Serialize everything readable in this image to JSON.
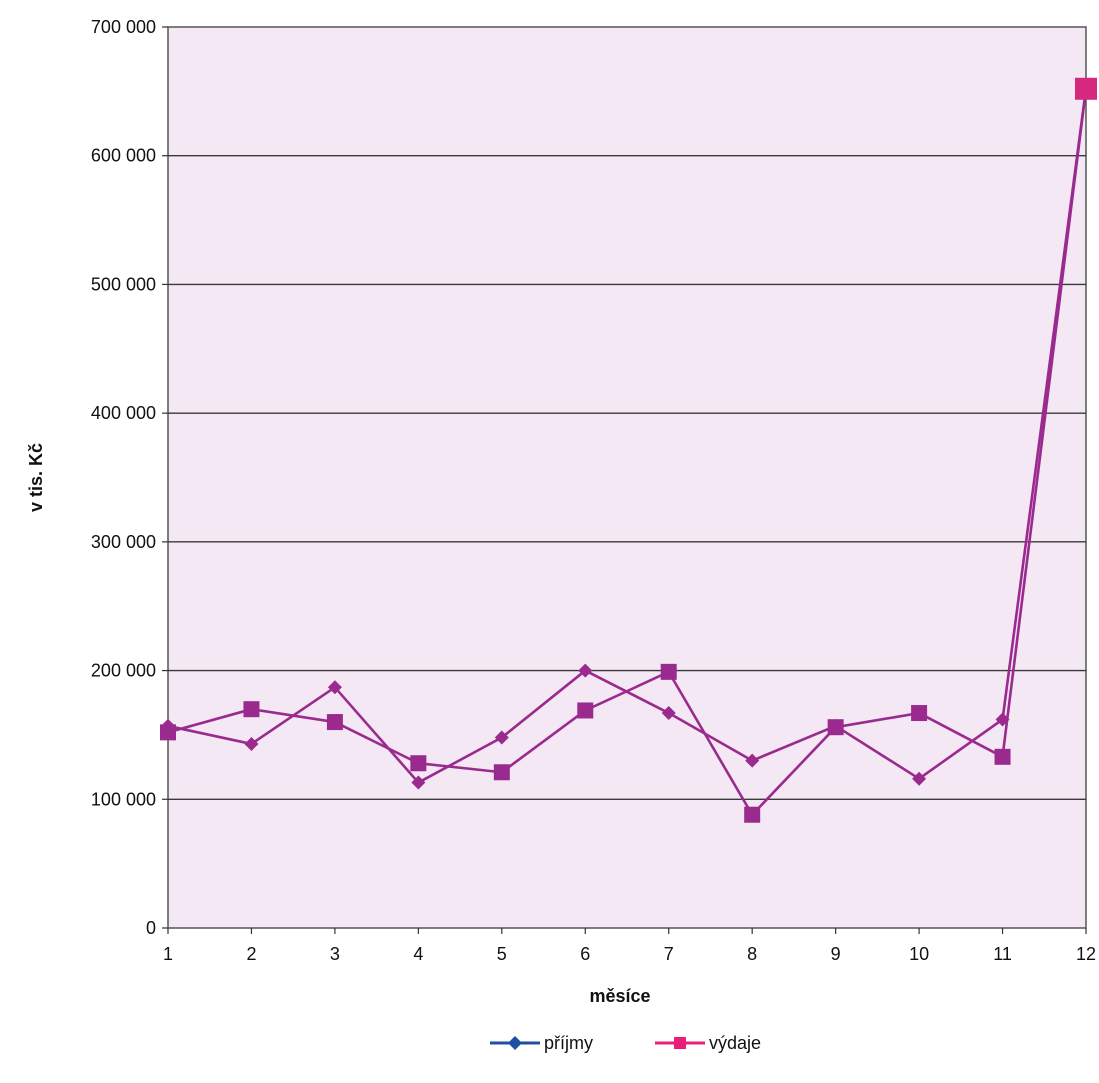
{
  "chart_data": {
    "type": "line",
    "x": [
      1,
      2,
      3,
      4,
      5,
      6,
      7,
      8,
      9,
      10,
      11,
      12
    ],
    "xlabel": "měsíce",
    "ylabel": "v tis. Kč",
    "ylim": [
      0,
      700000
    ],
    "y_ticks": [
      "0",
      "100 000",
      "200 000",
      "300 000",
      "400 000",
      "500 000",
      "600 000",
      "700 000"
    ],
    "x_ticks": [
      "1",
      "2",
      "3",
      "4",
      "5",
      "6",
      "7",
      "8",
      "9",
      "10",
      "11",
      "12"
    ],
    "grid": true,
    "legend_position": "bottom",
    "plot_background": "#f3e8f3",
    "series": [
      {
        "name": "příjmy",
        "marker": "diamond",
        "legend_color": "#1f4fa0",
        "line_color": "#9b2a8f",
        "values": [
          157000,
          143000,
          187000,
          113000,
          148000,
          200000,
          167000,
          130000,
          157000,
          116000,
          162000,
          652000
        ]
      },
      {
        "name": "výdaje",
        "marker": "square",
        "legend_color": "#e8207a",
        "line_color": "#9b2a8f",
        "values": [
          152000,
          170000,
          160000,
          128000,
          121000,
          169000,
          199000,
          88000,
          156000,
          167000,
          133000,
          652000
        ]
      }
    ]
  }
}
